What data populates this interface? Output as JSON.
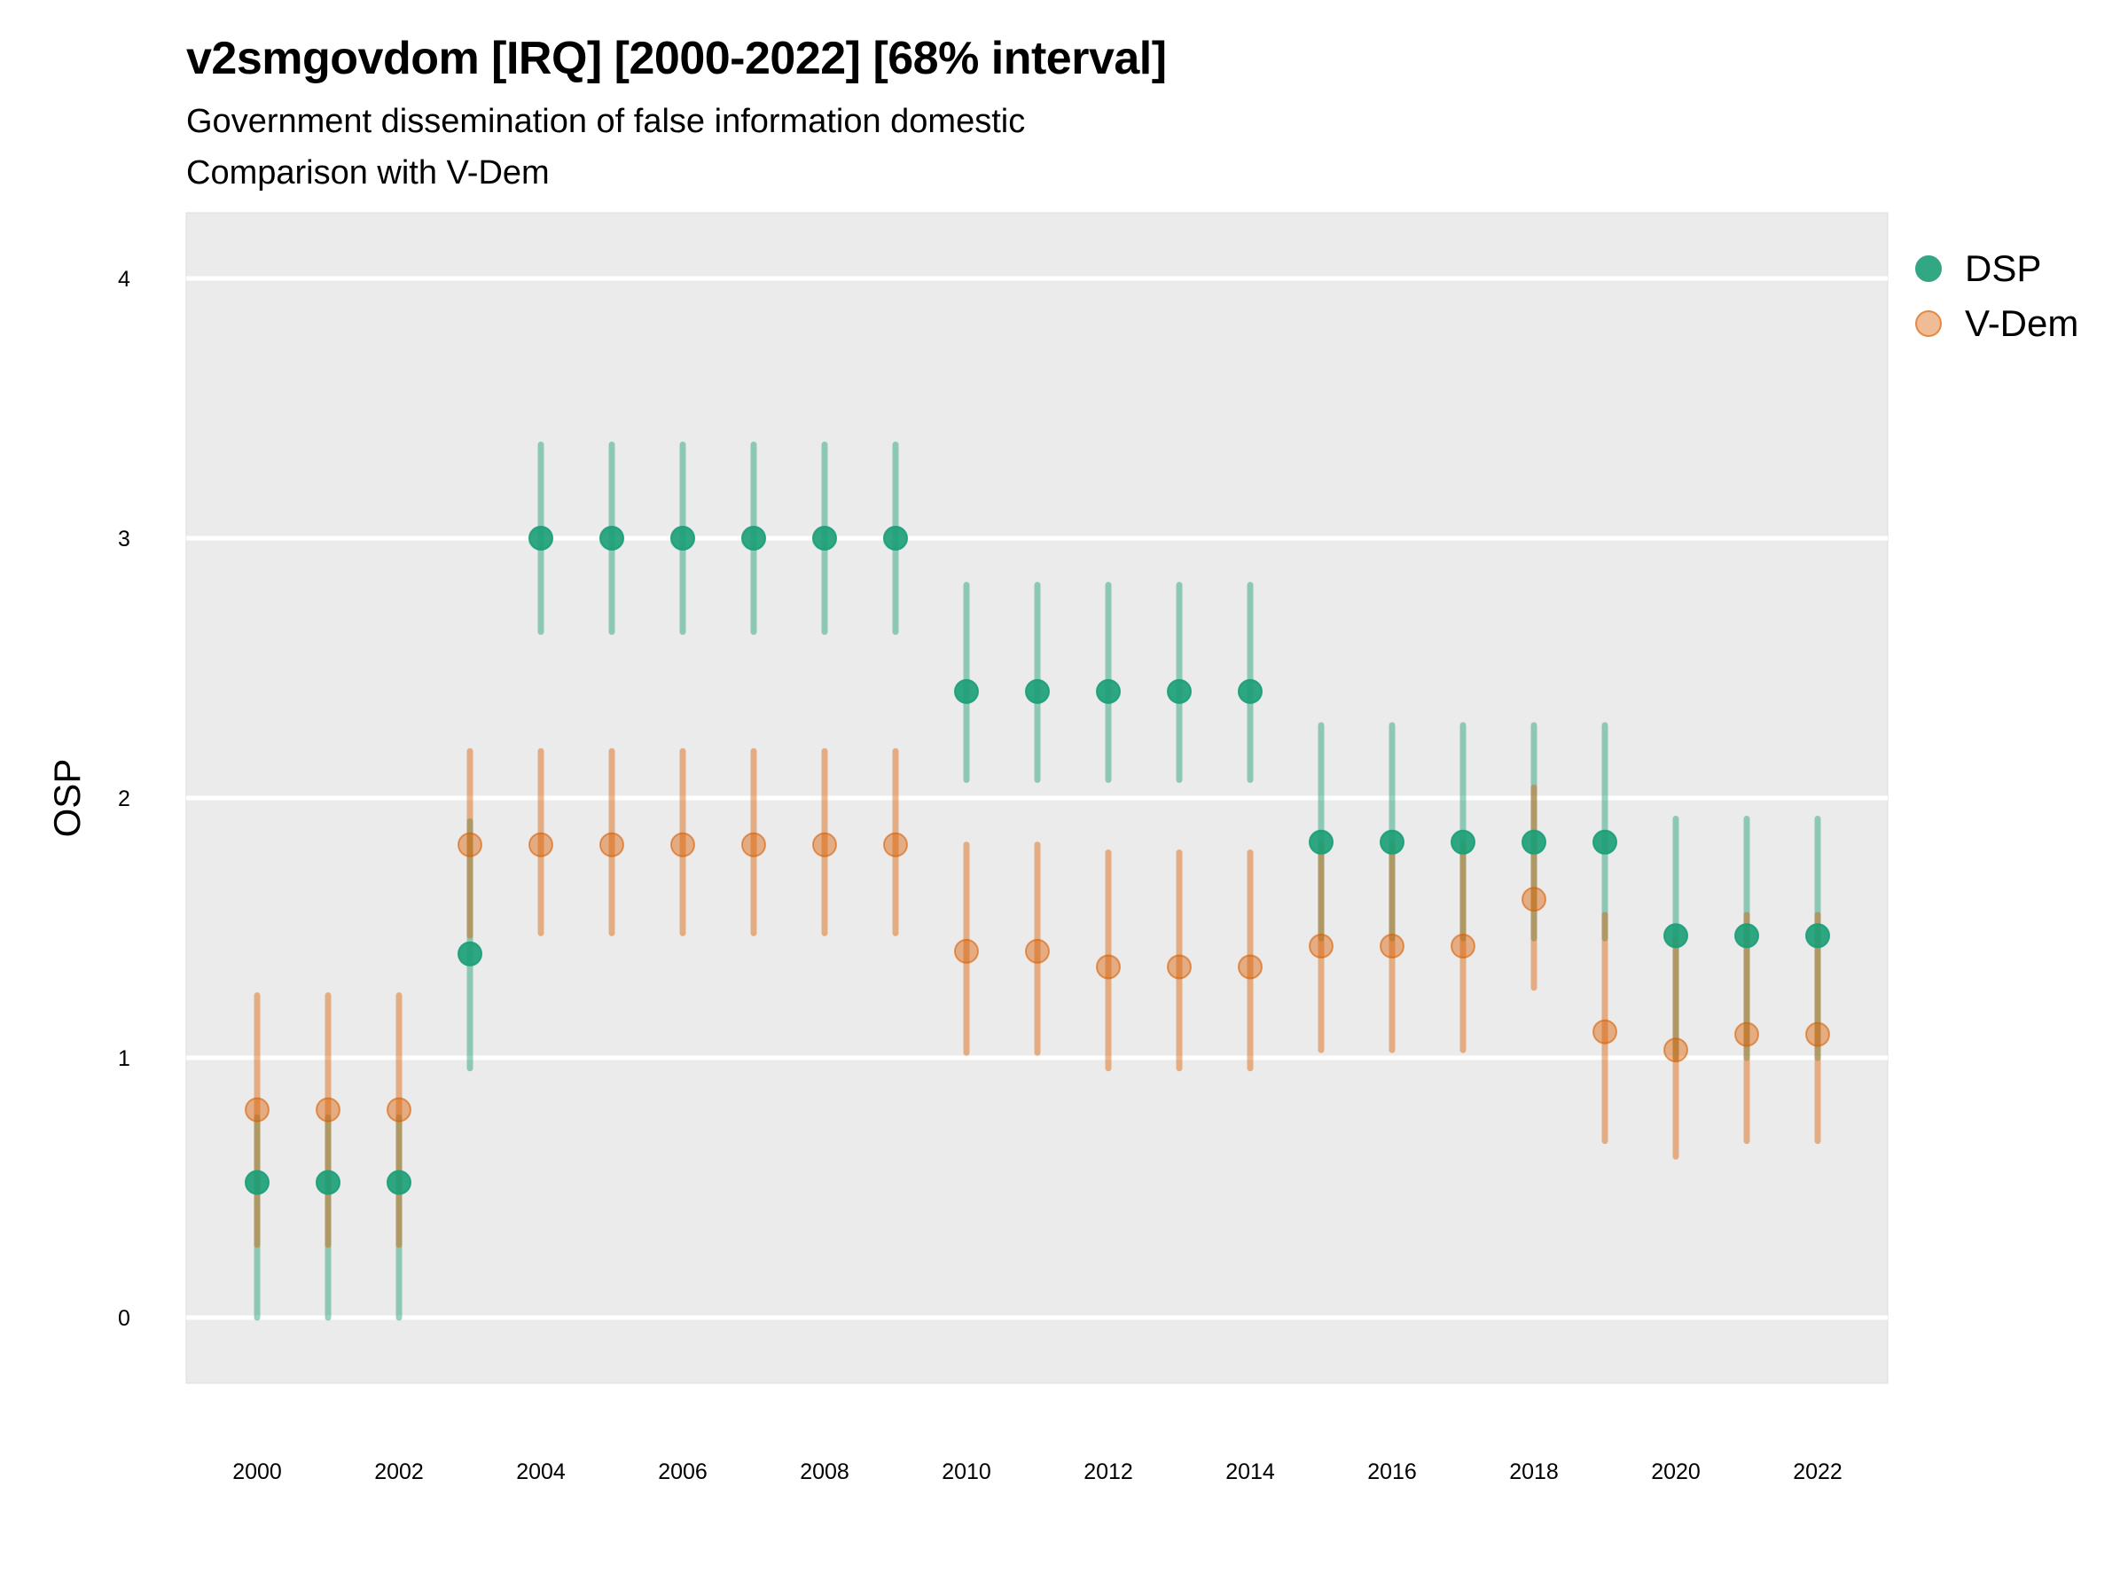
{
  "chart_data": {
    "type": "scatter",
    "subtype": "point-with-interval",
    "title": "v2smgovdom [IRQ] [2000-2022] [68% interval]",
    "subtitle_lines": [
      "Government dissemination of false information domestic",
      "Comparison with V-Dem"
    ],
    "xlabel": "",
    "ylabel": "OSP",
    "xlim": [
      1999,
      2023.5
    ],
    "ylim": [
      -0.25,
      4.25
    ],
    "x_ticks": [
      2000,
      2002,
      2004,
      2006,
      2008,
      2010,
      2012,
      2014,
      2016,
      2018,
      2020,
      2022
    ],
    "y_ticks": [
      0,
      1,
      2,
      3,
      4
    ],
    "grid": true,
    "legend_position": "right",
    "series": [
      {
        "name": "DSP",
        "color": "#1b9e77",
        "points": [
          {
            "x": 2000,
            "y": 0.52,
            "lo": 0.0,
            "hi": 0.77
          },
          {
            "x": 2001,
            "y": 0.52,
            "lo": 0.0,
            "hi": 0.77
          },
          {
            "x": 2002,
            "y": 0.52,
            "lo": 0.0,
            "hi": 0.77
          },
          {
            "x": 2003,
            "y": 1.4,
            "lo": 0.96,
            "hi": 1.91
          },
          {
            "x": 2004,
            "y": 3.0,
            "lo": 2.64,
            "hi": 3.36
          },
          {
            "x": 2005,
            "y": 3.0,
            "lo": 2.64,
            "hi": 3.36
          },
          {
            "x": 2006,
            "y": 3.0,
            "lo": 2.64,
            "hi": 3.36
          },
          {
            "x": 2007,
            "y": 3.0,
            "lo": 2.64,
            "hi": 3.36
          },
          {
            "x": 2008,
            "y": 3.0,
            "lo": 2.64,
            "hi": 3.36
          },
          {
            "x": 2009,
            "y": 3.0,
            "lo": 2.64,
            "hi": 3.36
          },
          {
            "x": 2010,
            "y": 2.41,
            "lo": 2.07,
            "hi": 2.82
          },
          {
            "x": 2011,
            "y": 2.41,
            "lo": 2.07,
            "hi": 2.82
          },
          {
            "x": 2012,
            "y": 2.41,
            "lo": 2.07,
            "hi": 2.82
          },
          {
            "x": 2013,
            "y": 2.41,
            "lo": 2.07,
            "hi": 2.82
          },
          {
            "x": 2014,
            "y": 2.41,
            "lo": 2.07,
            "hi": 2.82
          },
          {
            "x": 2015,
            "y": 1.83,
            "lo": 1.46,
            "hi": 2.28
          },
          {
            "x": 2016,
            "y": 1.83,
            "lo": 1.46,
            "hi": 2.28
          },
          {
            "x": 2017,
            "y": 1.83,
            "lo": 1.46,
            "hi": 2.28
          },
          {
            "x": 2018,
            "y": 1.83,
            "lo": 1.46,
            "hi": 2.28
          },
          {
            "x": 2019,
            "y": 1.83,
            "lo": 1.46,
            "hi": 2.28
          },
          {
            "x": 2020,
            "y": 1.47,
            "lo": 1.0,
            "hi": 1.92
          },
          {
            "x": 2021,
            "y": 1.47,
            "lo": 1.0,
            "hi": 1.92
          },
          {
            "x": 2022,
            "y": 1.47,
            "lo": 1.0,
            "hi": 1.92
          }
        ]
      },
      {
        "name": "V-Dem",
        "color": "#d95f02",
        "points": [
          {
            "x": 2000,
            "y": 0.8,
            "lo": 0.28,
            "hi": 1.24
          },
          {
            "x": 2001,
            "y": 0.8,
            "lo": 0.28,
            "hi": 1.24
          },
          {
            "x": 2002,
            "y": 0.8,
            "lo": 0.28,
            "hi": 1.24
          },
          {
            "x": 2003,
            "y": 1.82,
            "lo": 1.47,
            "hi": 2.18
          },
          {
            "x": 2004,
            "y": 1.82,
            "lo": 1.48,
            "hi": 2.18
          },
          {
            "x": 2005,
            "y": 1.82,
            "lo": 1.48,
            "hi": 2.18
          },
          {
            "x": 2006,
            "y": 1.82,
            "lo": 1.48,
            "hi": 2.18
          },
          {
            "x": 2007,
            "y": 1.82,
            "lo": 1.48,
            "hi": 2.18
          },
          {
            "x": 2008,
            "y": 1.82,
            "lo": 1.48,
            "hi": 2.18
          },
          {
            "x": 2009,
            "y": 1.82,
            "lo": 1.48,
            "hi": 2.18
          },
          {
            "x": 2010,
            "y": 1.41,
            "lo": 1.02,
            "hi": 1.82
          },
          {
            "x": 2011,
            "y": 1.41,
            "lo": 1.02,
            "hi": 1.82
          },
          {
            "x": 2012,
            "y": 1.35,
            "lo": 0.96,
            "hi": 1.79
          },
          {
            "x": 2013,
            "y": 1.35,
            "lo": 0.96,
            "hi": 1.79
          },
          {
            "x": 2014,
            "y": 1.35,
            "lo": 0.96,
            "hi": 1.79
          },
          {
            "x": 2015,
            "y": 1.43,
            "lo": 1.03,
            "hi": 1.82
          },
          {
            "x": 2016,
            "y": 1.43,
            "lo": 1.03,
            "hi": 1.82
          },
          {
            "x": 2017,
            "y": 1.43,
            "lo": 1.03,
            "hi": 1.82
          },
          {
            "x": 2018,
            "y": 1.61,
            "lo": 1.27,
            "hi": 2.04
          },
          {
            "x": 2019,
            "y": 1.1,
            "lo": 0.68,
            "hi": 1.55
          },
          {
            "x": 2020,
            "y": 1.03,
            "lo": 0.62,
            "hi": 1.46
          },
          {
            "x": 2021,
            "y": 1.09,
            "lo": 0.68,
            "hi": 1.55
          },
          {
            "x": 2022,
            "y": 1.09,
            "lo": 0.68,
            "hi": 1.55
          }
        ]
      }
    ]
  }
}
